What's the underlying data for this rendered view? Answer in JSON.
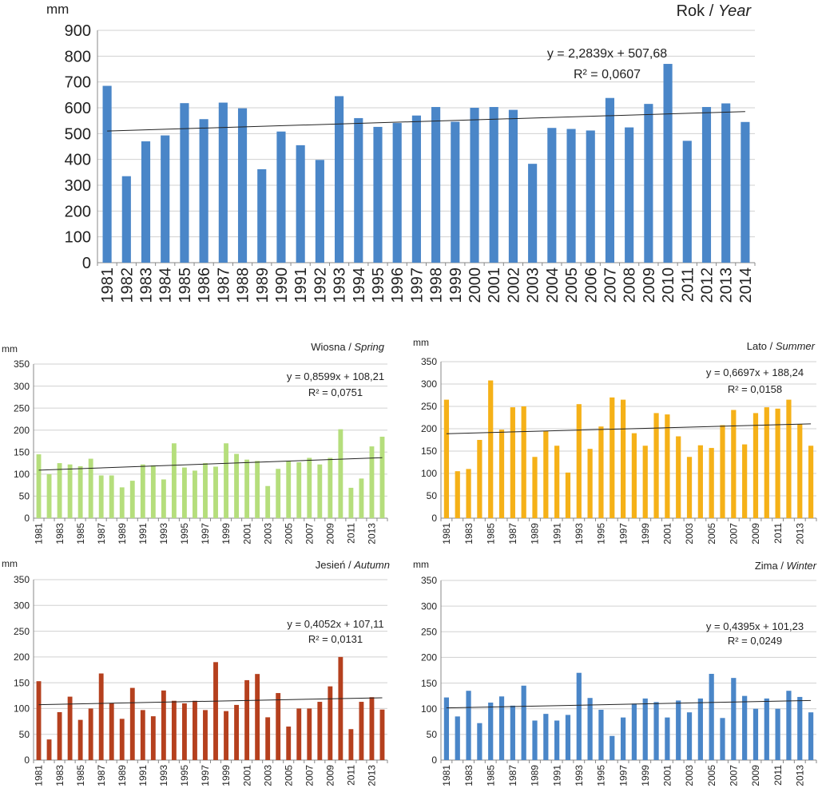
{
  "charts": [
    {
      "type": "bar",
      "title_main": "Rok / ",
      "title_italic": "Year",
      "unit": "mm",
      "color": "#4a86c8",
      "ylim": [
        0,
        900
      ],
      "yticks": [
        0,
        100,
        200,
        300,
        400,
        500,
        600,
        700,
        800,
        900
      ],
      "categories": [
        "1981",
        "1982",
        "1983",
        "1984",
        "1985",
        "1986",
        "1987",
        "1988",
        "1989",
        "1990",
        "1991",
        "1992",
        "1993",
        "1994",
        "1995",
        "1996",
        "1997",
        "1998",
        "1999",
        "2000",
        "2001",
        "2002",
        "2003",
        "2004",
        "2005",
        "2006",
        "2007",
        "2008",
        "2009",
        "2010",
        "2011",
        "2012",
        "2013",
        "2014"
      ],
      "xtick_labels": [
        "1981",
        "1982",
        "1983",
        "1984",
        "1985",
        "1986",
        "1987",
        "1988",
        "1989",
        "1990",
        "1991",
        "1992",
        "1993",
        "1994",
        "1995",
        "1996",
        "1997",
        "1998",
        "1999",
        "2000",
        "2001",
        "2002",
        "2003",
        "2004",
        "2005",
        "2006",
        "2007",
        "2008",
        "2009",
        "2010",
        "2011",
        "2012",
        "2013",
        "2014"
      ],
      "values": [
        685,
        335,
        470,
        493,
        618,
        556,
        620,
        598,
        362,
        508,
        455,
        398,
        645,
        560,
        526,
        541,
        570,
        603,
        546,
        600,
        603,
        592,
        383,
        522,
        518,
        512,
        638,
        524,
        615,
        770,
        472,
        603,
        617,
        545
      ],
      "trend": {
        "slope": 2.2839,
        "intercept": 507.68
      },
      "equation": "y = 2,2839x + 507,68",
      "r2": "R² = 0,0607"
    },
    {
      "type": "bar",
      "title_main": "Wiosna / ",
      "title_italic": "Spring",
      "unit": "mm",
      "color": "#b5de7c",
      "ylim": [
        0,
        350
      ],
      "yticks": [
        0,
        50,
        100,
        150,
        200,
        250,
        300,
        350
      ],
      "categories": [
        "1981",
        "1982",
        "1983",
        "1984",
        "1985",
        "1986",
        "1987",
        "1988",
        "1989",
        "1990",
        "1991",
        "1992",
        "1993",
        "1994",
        "1995",
        "1996",
        "1997",
        "1998",
        "1999",
        "2000",
        "2001",
        "2002",
        "2003",
        "2004",
        "2005",
        "2006",
        "2007",
        "2008",
        "2009",
        "2010",
        "2011",
        "2012",
        "2013",
        "2014"
      ],
      "xtick_labels": [
        "1981",
        "1983",
        "1985",
        "1987",
        "1989",
        "1991",
        "1993",
        "1995",
        "1997",
        "1999",
        "2001",
        "2003",
        "2005",
        "2007",
        "2009",
        "2011",
        "2013"
      ],
      "values": [
        145,
        100,
        125,
        122,
        118,
        135,
        97,
        97,
        70,
        85,
        122,
        120,
        88,
        170,
        115,
        108,
        125,
        117,
        170,
        146,
        133,
        130,
        73,
        112,
        130,
        127,
        137,
        122,
        137,
        202,
        69,
        90,
        163,
        185
      ],
      "trend": {
        "slope": 0.8599,
        "intercept": 108.21
      },
      "equation": "y = 0,8599x + 108,21",
      "r2": "R² = 0,0751"
    },
    {
      "type": "bar",
      "title_main": "Lato / ",
      "title_italic": "Summer",
      "unit": "mm",
      "color": "#f5b118",
      "ylim": [
        0,
        350
      ],
      "yticks": [
        0,
        50,
        100,
        150,
        200,
        250,
        300,
        350
      ],
      "categories": [
        "1981",
        "1982",
        "1983",
        "1984",
        "1985",
        "1986",
        "1987",
        "1988",
        "1989",
        "1990",
        "1991",
        "1992",
        "1993",
        "1994",
        "1995",
        "1996",
        "1997",
        "1998",
        "1999",
        "2000",
        "2001",
        "2002",
        "2003",
        "2004",
        "2005",
        "2006",
        "2007",
        "2008",
        "2009",
        "2010",
        "2011",
        "2012",
        "2013",
        "2014"
      ],
      "xtick_labels": [
        "1981",
        "1983",
        "1985",
        "1987",
        "1989",
        "1991",
        "1993",
        "1995",
        "1997",
        "1999",
        "2001",
        "2003",
        "2005",
        "2007",
        "2009",
        "2011",
        "2013"
      ],
      "values": [
        265,
        105,
        110,
        175,
        308,
        198,
        248,
        250,
        137,
        195,
        162,
        102,
        255,
        155,
        205,
        270,
        265,
        190,
        162,
        235,
        232,
        183,
        137,
        163,
        157,
        208,
        242,
        165,
        235,
        248,
        245,
        265,
        210,
        162
      ],
      "trend": {
        "slope": 0.6697,
        "intercept": 188.24
      },
      "equation": "y = 0,6697x + 188,24",
      "r2": "R² = 0,0158"
    },
    {
      "type": "bar",
      "title_main": "Jesień / ",
      "title_italic": "Autumn",
      "unit": "mm",
      "color": "#b5401e",
      "ylim": [
        0,
        350
      ],
      "yticks": [
        0,
        50,
        100,
        150,
        200,
        250,
        300,
        350
      ],
      "categories": [
        "1981",
        "1982",
        "1983",
        "1984",
        "1985",
        "1986",
        "1987",
        "1988",
        "1989",
        "1990",
        "1991",
        "1992",
        "1993",
        "1994",
        "1995",
        "1996",
        "1997",
        "1998",
        "1999",
        "2000",
        "2001",
        "2002",
        "2003",
        "2004",
        "2005",
        "2006",
        "2007",
        "2008",
        "2009",
        "2010",
        "2011",
        "2012",
        "2013",
        "2014"
      ],
      "xtick_labels": [
        "1981",
        "1983",
        "1985",
        "1987",
        "1989",
        "1991",
        "1993",
        "1995",
        "1997",
        "1999",
        "2001",
        "2003",
        "2005",
        "2007",
        "2009",
        "2011",
        "2013"
      ],
      "values": [
        153,
        40,
        93,
        123,
        78,
        100,
        168,
        110,
        80,
        140,
        97,
        85,
        135,
        115,
        110,
        115,
        97,
        190,
        95,
        107,
        155,
        167,
        83,
        130,
        65,
        100,
        100,
        113,
        143,
        200,
        60,
        113,
        122,
        98
      ],
      "trend": {
        "slope": 0.4052,
        "intercept": 107.11
      },
      "equation": "y = 0,4052x + 107,11",
      "r2": "R² = 0,0131"
    },
    {
      "type": "bar",
      "title_main": "Zima / ",
      "title_italic": "Winter",
      "unit": "mm",
      "color": "#4a86c8",
      "ylim": [
        0,
        350
      ],
      "yticks": [
        0,
        50,
        100,
        150,
        200,
        250,
        300,
        350
      ],
      "categories": [
        "1981",
        "1982",
        "1983",
        "1984",
        "1985",
        "1986",
        "1987",
        "1988",
        "1989",
        "1990",
        "1991",
        "1992",
        "1993",
        "1994",
        "1995",
        "1996",
        "1997",
        "1998",
        "1999",
        "2000",
        "2001",
        "2002",
        "2003",
        "2004",
        "2005",
        "2006",
        "2007",
        "2008",
        "2009",
        "2010",
        "2011",
        "2012",
        "2013",
        "2014"
      ],
      "xtick_labels": [
        "1981",
        "1983",
        "1985",
        "1987",
        "1989",
        "1991",
        "1993",
        "1995",
        "1997",
        "1999",
        "2001",
        "2003",
        "2005",
        "2007",
        "2009",
        "2011",
        "2013"
      ],
      "values": [
        122,
        85,
        135,
        72,
        112,
        124,
        106,
        145,
        77,
        90,
        77,
        88,
        170,
        121,
        98,
        47,
        83,
        110,
        120,
        113,
        83,
        116,
        93,
        120,
        168,
        82,
        160,
        125,
        100,
        120,
        100,
        135,
        123,
        93
      ],
      "trend": {
        "slope": 0.4395,
        "intercept": 101.23
      },
      "equation": "y = 0,4395x + 101,23",
      "r2": "R² = 0,0249"
    }
  ]
}
